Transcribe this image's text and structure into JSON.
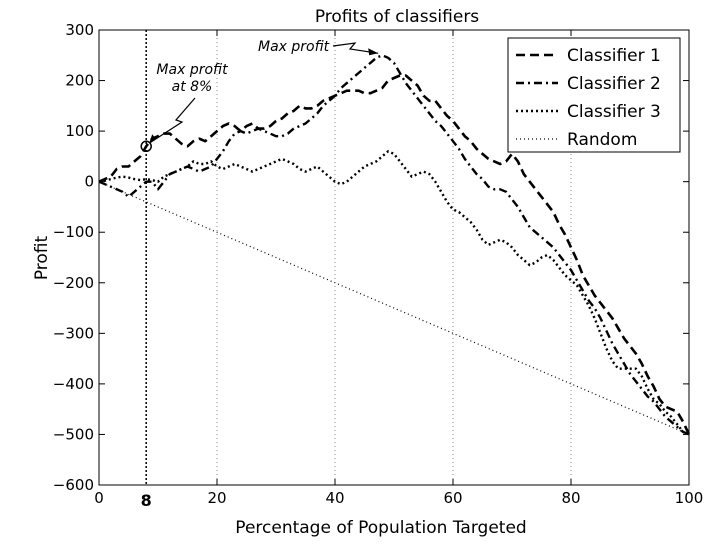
{
  "chart_data": {
    "type": "line",
    "title": "Profits of classifiers",
    "xlabel": "Percentage of Population Targeted",
    "ylabel": "Profit",
    "xlim": [
      0,
      100
    ],
    "ylim": [
      -600,
      300
    ],
    "xticks": [
      0,
      20,
      40,
      60,
      80,
      100
    ],
    "yticks": [
      300,
      200,
      100,
      0,
      -100,
      -200,
      -300,
      -400,
      -500,
      -600
    ],
    "grid": "vertical dotted",
    "legend_position": "top-right",
    "series": [
      {
        "name": "Classifier 1",
        "x": [
          0,
          1,
          2,
          3,
          4,
          5,
          6,
          7,
          8,
          9,
          10,
          11,
          12,
          13,
          14,
          15,
          16,
          17,
          18,
          19,
          20,
          21,
          22,
          23,
          24,
          25,
          26,
          27,
          28,
          29,
          30,
          31,
          32,
          33,
          34,
          35,
          36,
          37,
          38,
          39,
          40,
          41,
          42,
          43,
          44,
          45,
          46,
          47,
          48,
          49,
          50,
          51,
          52,
          53,
          54,
          55,
          56,
          57,
          58,
          59,
          60,
          61,
          62,
          63,
          64,
          65,
          66,
          67,
          68,
          69,
          70,
          71,
          72,
          73,
          74,
          75,
          76,
          77,
          78,
          79,
          80,
          81,
          82,
          83,
          84,
          85,
          86,
          87,
          88,
          89,
          90,
          91,
          92,
          93,
          94,
          95,
          96,
          97,
          98,
          99,
          100
        ],
        "y": [
          0,
          5,
          10,
          25,
          30,
          30,
          40,
          50,
          70,
          85,
          90,
          95,
          95,
          85,
          75,
          70,
          80,
          85,
          80,
          90,
          100,
          110,
          115,
          110,
          100,
          110,
          115,
          105,
          105,
          110,
          120,
          125,
          135,
          140,
          150,
          145,
          145,
          150,
          160,
          165,
          170,
          175,
          180,
          180,
          180,
          175,
          175,
          180,
          185,
          200,
          205,
          210,
          210,
          200,
          190,
          170,
          160,
          160,
          145,
          130,
          120,
          105,
          90,
          80,
          65,
          55,
          45,
          40,
          35,
          40,
          55,
          40,
          15,
          0,
          -15,
          -30,
          -45,
          -60,
          -85,
          -105,
          -130,
          -155,
          -185,
          -205,
          -225,
          -240,
          -255,
          -270,
          -290,
          -310,
          -325,
          -340,
          -360,
          -385,
          -405,
          -430,
          -445,
          -450,
          -455,
          -475,
          -500
        ]
      },
      {
        "name": "Classifier 2",
        "x": [
          0,
          2,
          4,
          5,
          7,
          8,
          9,
          10,
          11,
          12,
          13,
          14,
          15,
          16,
          17,
          18,
          19,
          20,
          21,
          22,
          23,
          24,
          25,
          26,
          27,
          28,
          29,
          30,
          31,
          32,
          33,
          34,
          35,
          36,
          37,
          38,
          39,
          40,
          41,
          42,
          43,
          44,
          45,
          46,
          47,
          48,
          49,
          50,
          51,
          52,
          53,
          54,
          55,
          56,
          57,
          58,
          59,
          60,
          61,
          62,
          63,
          64,
          65,
          66,
          67,
          68,
          69,
          70,
          71,
          72,
          73,
          74,
          75,
          76,
          77,
          78,
          79,
          80,
          81,
          82,
          83,
          84,
          85,
          86,
          87,
          88,
          89,
          90,
          91,
          92,
          93,
          94,
          95,
          96,
          97,
          98,
          99,
          100
        ],
        "y": [
          0,
          -10,
          -20,
          -30,
          -10,
          0,
          0,
          -15,
          0,
          15,
          20,
          25,
          30,
          25,
          20,
          25,
          30,
          45,
          60,
          80,
          95,
          100,
          95,
          100,
          105,
          100,
          95,
          90,
          90,
          95,
          105,
          110,
          115,
          125,
          135,
          150,
          160,
          170,
          185,
          195,
          205,
          215,
          225,
          235,
          245,
          250,
          245,
          235,
          215,
          195,
          180,
          165,
          150,
          135,
          120,
          110,
          95,
          80,
          65,
          45,
          30,
          15,
          5,
          -10,
          -15,
          -15,
          -20,
          -35,
          -50,
          -70,
          -90,
          -100,
          -110,
          -120,
          -130,
          -145,
          -160,
          -175,
          -195,
          -215,
          -235,
          -250,
          -270,
          -295,
          -320,
          -340,
          -360,
          -380,
          -395,
          -410,
          -425,
          -435,
          -450,
          -465,
          -475,
          -485,
          -495,
          -500
        ]
      },
      {
        "name": "Classifier 3",
        "x": [
          0,
          1,
          2,
          3,
          4,
          5,
          6,
          7,
          8,
          9,
          10,
          11,
          12,
          13,
          14,
          15,
          16,
          17,
          18,
          19,
          20,
          21,
          22,
          23,
          24,
          25,
          26,
          27,
          28,
          29,
          30,
          31,
          32,
          33,
          34,
          35,
          36,
          37,
          38,
          39,
          40,
          41,
          42,
          43,
          44,
          45,
          46,
          47,
          48,
          49,
          50,
          51,
          52,
          53,
          54,
          55,
          56,
          57,
          58,
          59,
          60,
          61,
          62,
          63,
          64,
          65,
          66,
          67,
          68,
          69,
          70,
          71,
          72,
          73,
          74,
          75,
          76,
          77,
          78,
          79,
          80,
          81,
          82,
          83,
          84,
          85,
          86,
          87,
          88,
          89,
          90,
          91,
          92,
          93,
          94,
          95,
          96,
          97,
          98,
          99,
          100
        ],
        "y": [
          0,
          2,
          5,
          8,
          10,
          8,
          5,
          3,
          5,
          3,
          0,
          10,
          15,
          20,
          25,
          30,
          40,
          35,
          35,
          40,
          30,
          25,
          30,
          35,
          30,
          25,
          20,
          25,
          30,
          35,
          40,
          45,
          40,
          35,
          25,
          20,
          25,
          30,
          20,
          10,
          0,
          -5,
          0,
          10,
          20,
          30,
          35,
          40,
          50,
          60,
          55,
          40,
          25,
          10,
          15,
          20,
          15,
          0,
          -20,
          -40,
          -55,
          -60,
          -70,
          -80,
          -95,
          -115,
          -125,
          -120,
          -115,
          -120,
          -130,
          -145,
          -155,
          -165,
          -160,
          -150,
          -145,
          -155,
          -170,
          -185,
          -195,
          -205,
          -225,
          -245,
          -270,
          -300,
          -330,
          -355,
          -370,
          -370,
          -370,
          -370,
          -385,
          -410,
          -430,
          -440,
          -455,
          -465,
          -480,
          -495,
          -500
        ]
      },
      {
        "name": "Random",
        "x": [
          0,
          100
        ],
        "y": [
          0,
          -500
        ]
      }
    ],
    "annotations": [
      {
        "text_lines": [
          "Max profit",
          "at 8%"
        ],
        "target_x": 8,
        "target_y": 70
      },
      {
        "text_lines": [
          "Max profit"
        ],
        "target_x": 48,
        "target_y": 250
      }
    ],
    "vertical_marker": {
      "x": 8,
      "label": "8"
    }
  },
  "styles": {
    "line_color": "#000000",
    "grid_color": "#888888",
    "background": "#ffffff"
  }
}
